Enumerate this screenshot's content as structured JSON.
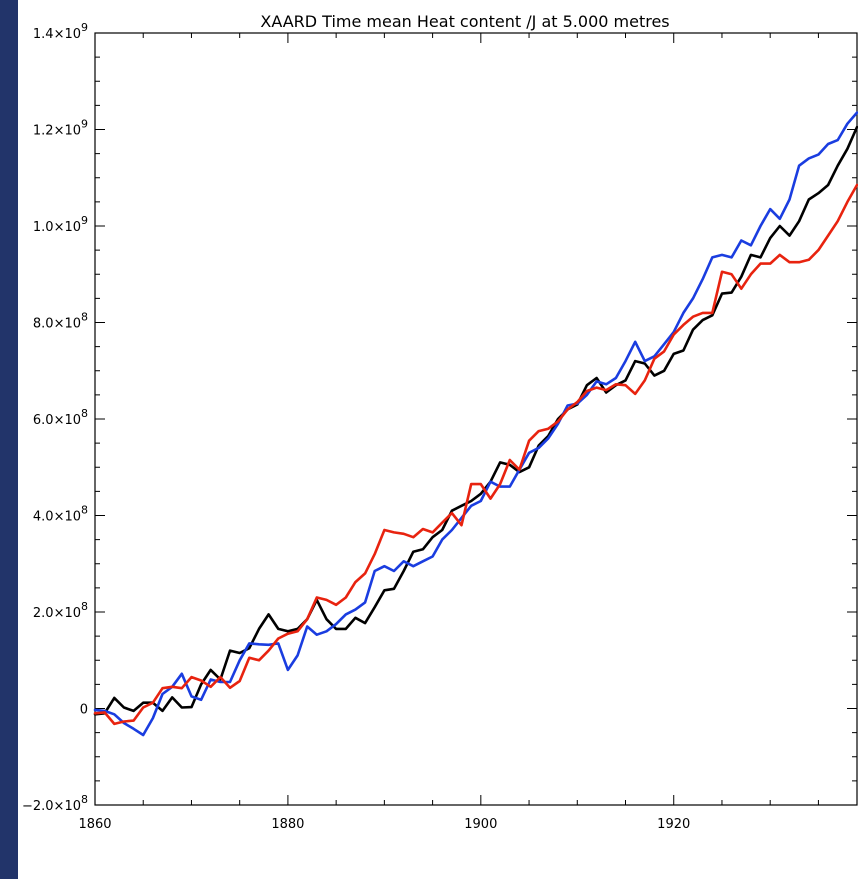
{
  "chart_data": {
    "type": "line",
    "title": "XAARD Time mean Heat content /J at 5.000 metres",
    "xlabel": "",
    "ylabel": "",
    "xlim": [
      1860,
      1939
    ],
    "ylim": [
      -200000000,
      1400000000
    ],
    "x_ticks": [
      1860,
      1880,
      1900,
      1920
    ],
    "x_tick_labels": [
      "1860",
      "1880",
      "1900",
      "1920"
    ],
    "y_ticks": [
      {
        "value": -200000000,
        "mant": "−2.0×10",
        "exp": "8"
      },
      {
        "value": 0,
        "mant": "0",
        "exp": ""
      },
      {
        "value": 200000000,
        "mant": "2.0×10",
        "exp": "8"
      },
      {
        "value": 400000000,
        "mant": "4.0×10",
        "exp": "8"
      },
      {
        "value": 600000000,
        "mant": "6.0×10",
        "exp": "8"
      },
      {
        "value": 800000000,
        "mant": "8.0×10",
        "exp": "8"
      },
      {
        "value": 1000000000,
        "mant": "1.0×10",
        "exp": "9"
      },
      {
        "value": 1200000000,
        "mant": "1.2×10",
        "exp": "9"
      },
      {
        "value": 1400000000,
        "mant": "1.4×10",
        "exp": "9"
      }
    ],
    "grid": false,
    "x": [
      1860,
      1861,
      1862,
      1863,
      1864,
      1865,
      1866,
      1867,
      1868,
      1869,
      1870,
      1871,
      1872,
      1873,
      1874,
      1875,
      1876,
      1877,
      1878,
      1879,
      1880,
      1881,
      1882,
      1883,
      1884,
      1885,
      1886,
      1887,
      1888,
      1889,
      1890,
      1891,
      1892,
      1893,
      1894,
      1895,
      1896,
      1897,
      1898,
      1899,
      1900,
      1901,
      1902,
      1903,
      1904,
      1905,
      1906,
      1907,
      1908,
      1909,
      1910,
      1911,
      1912,
      1913,
      1914,
      1915,
      1916,
      1917,
      1918,
      1919,
      1920,
      1921,
      1922,
      1923,
      1924,
      1925,
      1926,
      1927,
      1928,
      1929,
      1930,
      1931,
      1932,
      1933,
      1934,
      1935,
      1936,
      1937,
      1938,
      1939
    ],
    "series": [
      {
        "color": "#000000",
        "values": [
          -12000000,
          -10000000,
          22000000,
          2000000,
          -5000000,
          12000000,
          12000000,
          -5000000,
          23000000,
          2000000,
          3000000,
          50000000,
          80000000,
          60000000,
          120000000,
          115000000,
          125000000,
          165000000,
          195000000,
          165000000,
          160000000,
          165000000,
          185000000,
          225000000,
          185000000,
          165000000,
          165000000,
          188000000,
          177000000,
          210000000,
          245000000,
          248000000,
          285000000,
          325000000,
          330000000,
          355000000,
          370000000,
          410000000,
          420000000,
          430000000,
          445000000,
          470000000,
          510000000,
          505000000,
          490000000,
          500000000,
          545000000,
          565000000,
          600000000,
          620000000,
          630000000,
          670000000,
          685000000,
          655000000,
          670000000,
          680000000,
          720000000,
          715000000,
          690000000,
          700000000,
          735000000,
          742000000,
          785000000,
          805000000,
          815000000,
          860000000,
          862000000,
          895000000,
          940000000,
          935000000,
          975000000,
          1000000000,
          980000000,
          1010000000,
          1055000000,
          1068000000,
          1085000000,
          1125000000,
          1160000000,
          1205000000
        ]
      },
      {
        "color": "#1a3de0",
        "values": [
          -3000000,
          -5000000,
          -12000000,
          -30000000,
          -42000000,
          -55000000,
          -20000000,
          30000000,
          45000000,
          72000000,
          25000000,
          18000000,
          60000000,
          55000000,
          55000000,
          100000000,
          135000000,
          133000000,
          132000000,
          135000000,
          80000000,
          110000000,
          170000000,
          153000000,
          160000000,
          175000000,
          195000000,
          205000000,
          220000000,
          285000000,
          295000000,
          285000000,
          305000000,
          295000000,
          305000000,
          315000000,
          350000000,
          370000000,
          395000000,
          420000000,
          430000000,
          470000000,
          460000000,
          460000000,
          495000000,
          530000000,
          540000000,
          560000000,
          590000000,
          628000000,
          632000000,
          650000000,
          678000000,
          672000000,
          685000000,
          720000000,
          760000000,
          720000000,
          730000000,
          755000000,
          780000000,
          820000000,
          850000000,
          890000000,
          935000000,
          940000000,
          935000000,
          970000000,
          960000000,
          1000000000,
          1035000000,
          1015000000,
          1055000000,
          1125000000,
          1140000000,
          1148000000,
          1170000000,
          1178000000,
          1212000000,
          1235000000
        ]
      },
      {
        "color": "#e8230f",
        "values": [
          -10000000,
          -8000000,
          -32000000,
          -27000000,
          -25000000,
          2000000,
          12000000,
          42000000,
          45000000,
          42000000,
          65000000,
          58000000,
          45000000,
          65000000,
          43000000,
          57000000,
          105000000,
          100000000,
          120000000,
          145000000,
          155000000,
          160000000,
          185000000,
          230000000,
          225000000,
          215000000,
          230000000,
          262000000,
          280000000,
          320000000,
          370000000,
          365000000,
          362000000,
          355000000,
          372000000,
          365000000,
          385000000,
          405000000,
          380000000,
          465000000,
          465000000,
          435000000,
          465000000,
          515000000,
          495000000,
          555000000,
          575000000,
          580000000,
          595000000,
          620000000,
          635000000,
          658000000,
          665000000,
          660000000,
          672000000,
          670000000,
          652000000,
          680000000,
          725000000,
          740000000,
          775000000,
          795000000,
          812000000,
          820000000,
          820000000,
          905000000,
          900000000,
          870000000,
          900000000,
          922000000,
          922000000,
          940000000,
          925000000,
          925000000,
          930000000,
          950000000,
          980000000,
          1010000000,
          1050000000,
          1085000000
        ]
      }
    ]
  }
}
